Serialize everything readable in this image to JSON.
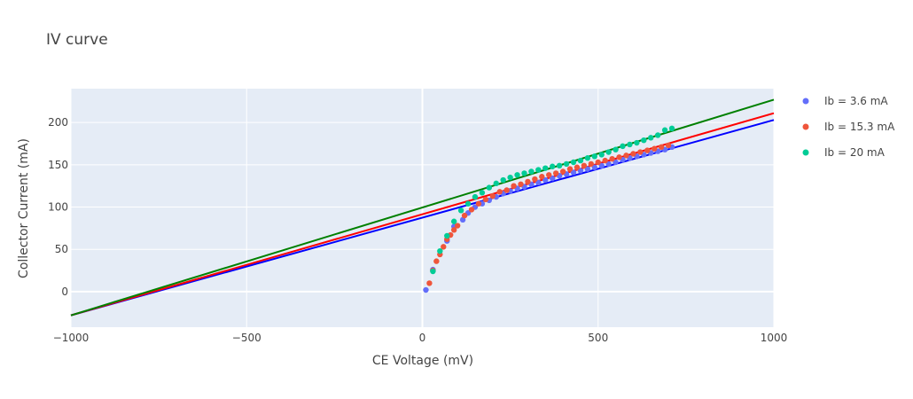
{
  "chart_data": {
    "type": "scatter",
    "title": "IV curve",
    "xlabel": "CE Voltage (mV)",
    "ylabel": "Collector Current (mA)",
    "xlim": [
      -1000,
      1000
    ],
    "ylim": [
      -42,
      240
    ],
    "x_ticks": [
      -1000,
      -500,
      0,
      500,
      1000
    ],
    "y_ticks": [
      0,
      50,
      100,
      150,
      200
    ],
    "grid": true,
    "legend_position": "right",
    "plot_background": "#E5ECF6",
    "series": [
      {
        "name": "Ib = 3.6 mA",
        "color": "#636EFA",
        "marker": "circle",
        "x": [
          10,
          30,
          70,
          90,
          115,
          130,
          150,
          170,
          190,
          210,
          230,
          250,
          270,
          290,
          310,
          330,
          350,
          370,
          390,
          410,
          430,
          450,
          470,
          490,
          510,
          530,
          550,
          570,
          590,
          610,
          630,
          650,
          670,
          690,
          710
        ],
        "y": [
          2,
          26,
          60,
          77,
          85,
          93,
          100,
          104,
          108,
          112,
          116,
          119,
          122,
          124,
          127,
          129,
          132,
          134,
          137,
          139,
          141,
          143,
          145,
          147,
          149,
          151,
          153,
          156,
          158,
          160,
          162,
          164,
          166,
          168,
          171
        ]
      },
      {
        "name": "Ib = 15.3 mA",
        "color": "#EF553B",
        "marker": "circle",
        "x": [
          20,
          30,
          40,
          50,
          60,
          70,
          80,
          90,
          100,
          120,
          140,
          160,
          180,
          200,
          220,
          240,
          260,
          280,
          300,
          320,
          340,
          360,
          380,
          400,
          420,
          440,
          460,
          480,
          500,
          520,
          540,
          560,
          580,
          600,
          620,
          640,
          660,
          680,
          700
        ],
        "y": [
          10,
          25,
          36,
          44,
          53,
          62,
          67,
          73,
          78,
          90,
          97,
          104,
          109,
          113,
          118,
          120,
          125,
          127,
          130,
          133,
          136,
          138,
          140,
          142,
          145,
          147,
          149,
          151,
          153,
          155,
          157,
          159,
          161,
          163,
          165,
          167,
          169,
          171,
          173
        ]
      },
      {
        "name": "Ib = 20 mA",
        "color": "#00CC96",
        "marker": "circle",
        "x": [
          30,
          50,
          70,
          90,
          110,
          130,
          150,
          170,
          190,
          210,
          230,
          250,
          270,
          290,
          310,
          330,
          350,
          370,
          390,
          410,
          430,
          450,
          470,
          490,
          510,
          530,
          550,
          570,
          590,
          610,
          630,
          650,
          670,
          690,
          710
        ],
        "y": [
          24,
          48,
          66,
          83,
          96,
          104,
          112,
          117,
          123,
          128,
          132,
          135,
          138,
          140,
          142,
          144,
          146,
          148,
          149,
          151,
          153,
          155,
          158,
          160,
          162,
          165,
          168,
          172,
          174,
          176,
          179,
          182,
          185,
          191,
          193
        ]
      },
      {
        "name": "",
        "color": "#0000FF",
        "marker": "line",
        "x": [
          -1000,
          1000
        ],
        "y": [
          -28,
          203
        ]
      },
      {
        "name": "",
        "color": "#FF0000",
        "marker": "line",
        "x": [
          -1000,
          1000
        ],
        "y": [
          -28,
          211
        ]
      },
      {
        "name": "",
        "color": "#008000",
        "marker": "line",
        "x": [
          -1000,
          1000
        ],
        "y": [
          -28,
          227
        ]
      }
    ]
  }
}
